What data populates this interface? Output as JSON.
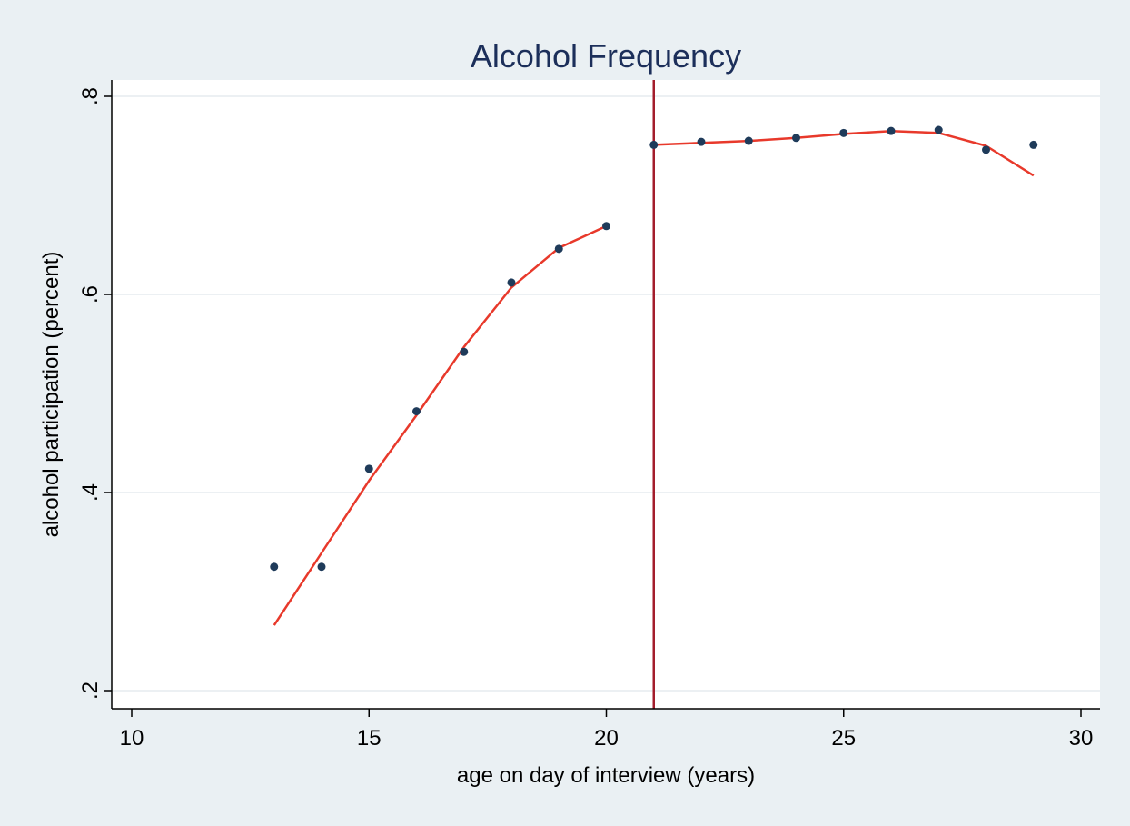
{
  "chart_data": {
    "type": "scatter",
    "title": "Alcohol Frequency",
    "xlabel": "age on day of interview (years)",
    "ylabel": "alcohol participation (percent)",
    "xlim": [
      10,
      30
    ],
    "ylim": [
      0.2,
      0.8
    ],
    "x_ticks": [
      10,
      15,
      20,
      25,
      30
    ],
    "x_tick_labels": [
      "10",
      "15",
      "20",
      "25",
      "30"
    ],
    "y_ticks": [
      0.2,
      0.4,
      0.6,
      0.8
    ],
    "y_tick_labels": [
      ".2",
      ".4",
      ".6",
      ".8"
    ],
    "grid": true,
    "cutoff_x": 21,
    "colors": {
      "points": "#1f3b5a",
      "fit": "#e8392b",
      "cutoff": "#a31d2c",
      "title": "#1c2f5a",
      "plot_bg": "#ffffff",
      "page_bg": "#eaf0f3",
      "grid": "#e6ecef"
    },
    "series": [
      {
        "kind": "points",
        "x": [
          13,
          14,
          15,
          16,
          17,
          18,
          19,
          20,
          21,
          22,
          23,
          24,
          25,
          26,
          27,
          28,
          29
        ],
        "y": [
          0.325,
          0.325,
          0.424,
          0.482,
          0.542,
          0.612,
          0.646,
          0.669,
          0.751,
          0.754,
          0.755,
          0.758,
          0.763,
          0.765,
          0.766,
          0.746,
          0.751
        ]
      },
      {
        "kind": "fit-left",
        "x": [
          13,
          14,
          15,
          16,
          17,
          18,
          19,
          20
        ],
        "y": [
          0.266,
          0.339,
          0.412,
          0.478,
          0.547,
          0.607,
          0.647,
          0.669
        ]
      },
      {
        "kind": "fit-right",
        "x": [
          21,
          22,
          23,
          24,
          25,
          26,
          27,
          28,
          29
        ],
        "y": [
          0.751,
          0.753,
          0.755,
          0.758,
          0.762,
          0.765,
          0.763,
          0.75,
          0.72
        ]
      }
    ]
  }
}
